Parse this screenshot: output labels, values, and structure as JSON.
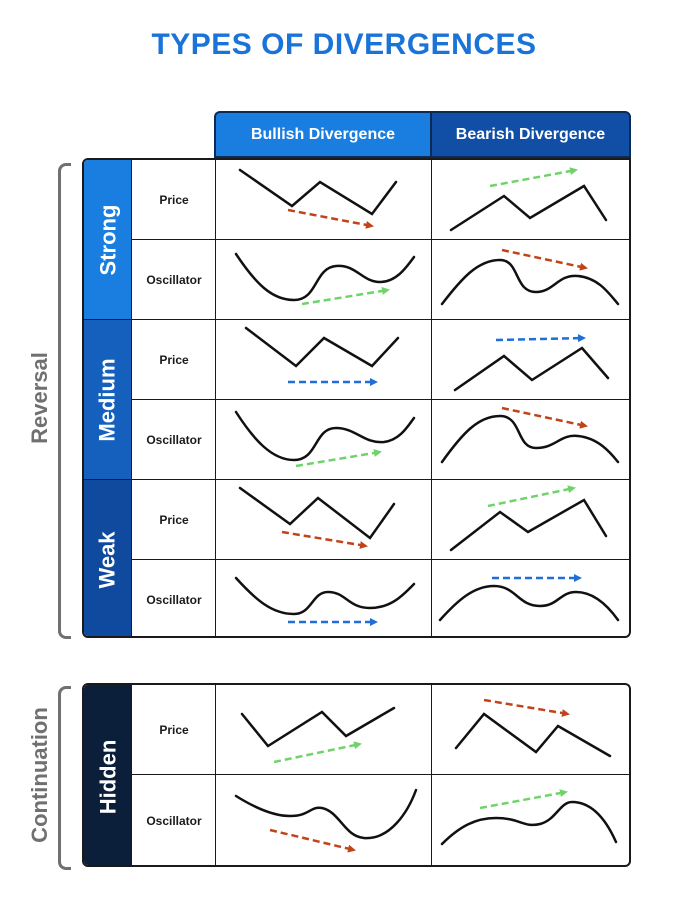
{
  "title": "TYPES OF DIVERGENCES",
  "columns": {
    "bullish": "Bullish Divergence",
    "bearish": "Bearish Divergence"
  },
  "groups": {
    "reversal": "Reversal",
    "continuation": "Continuation"
  },
  "bands": {
    "strong": "Strong",
    "medium": "Medium",
    "weak": "Weak",
    "hidden": "Hidden"
  },
  "row_labels": {
    "price": "Price",
    "oscillator": "Oscillator"
  },
  "colors": {
    "title": "#1a74d8",
    "strong_band": "#1a7de0",
    "medium_band": "#1560bd",
    "weak_band": "#0f4a9e",
    "hidden_band": "#0c1f3a",
    "arrow_red": "#c0431a",
    "arrow_green": "#6fd36a",
    "arrow_blue": "#1f6fd6"
  }
}
